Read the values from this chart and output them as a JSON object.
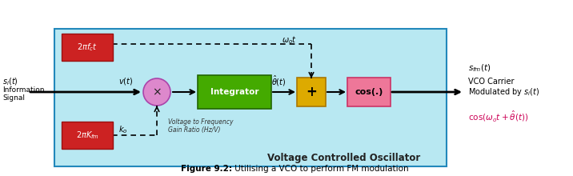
{
  "bg_color": "#b8e8f2",
  "vco_edge_color": "#2288bb",
  "red_box_color": "#cc2222",
  "red_box_edge": "#991111",
  "green_box_color": "#44aa00",
  "green_box_edge": "#226600",
  "yellow_box_color": "#ddaa00",
  "yellow_box_edge": "#aa7700",
  "pink_box_color": "#ee7799",
  "pink_box_edge": "#cc3366",
  "circle_color": "#dd88cc",
  "circle_edge": "#aa44aa",
  "title": "Voltage Controlled Oscillator",
  "figure_caption_bold": "Figure 9.2:",
  "figure_caption_normal": " Utilising a VCO to perform FM modulation",
  "output_label1": "$s_{fm}(t)$",
  "output_label2": "VCO Carrier",
  "output_label3": "Modulated by $s_i(t)$",
  "output_formula": "$\\cos(\\omega_o t + \\hat{\\theta}(t))$",
  "top_red_box_label": "$2\\pi f_c t$",
  "bot_red_box_label": "$2\\pi K_{fm}$",
  "integrator_label": "Integrator",
  "cos_label": "cos(.)",
  "plus_label": "+",
  "multiply_label": "$\\times$",
  "vt_label": "$v(t)$",
  "theta_label": "$\\hat{\\theta}(t)$",
  "omega_label": "$\\omega_o t$",
  "ko_label": "$k_o$",
  "gain_ratio_label": "Voltage to Frequency\nGain Ratio (Hz/V)",
  "si_label": "$s_i(t)$",
  "info_label": "Information",
  "signal_label": "Signal"
}
